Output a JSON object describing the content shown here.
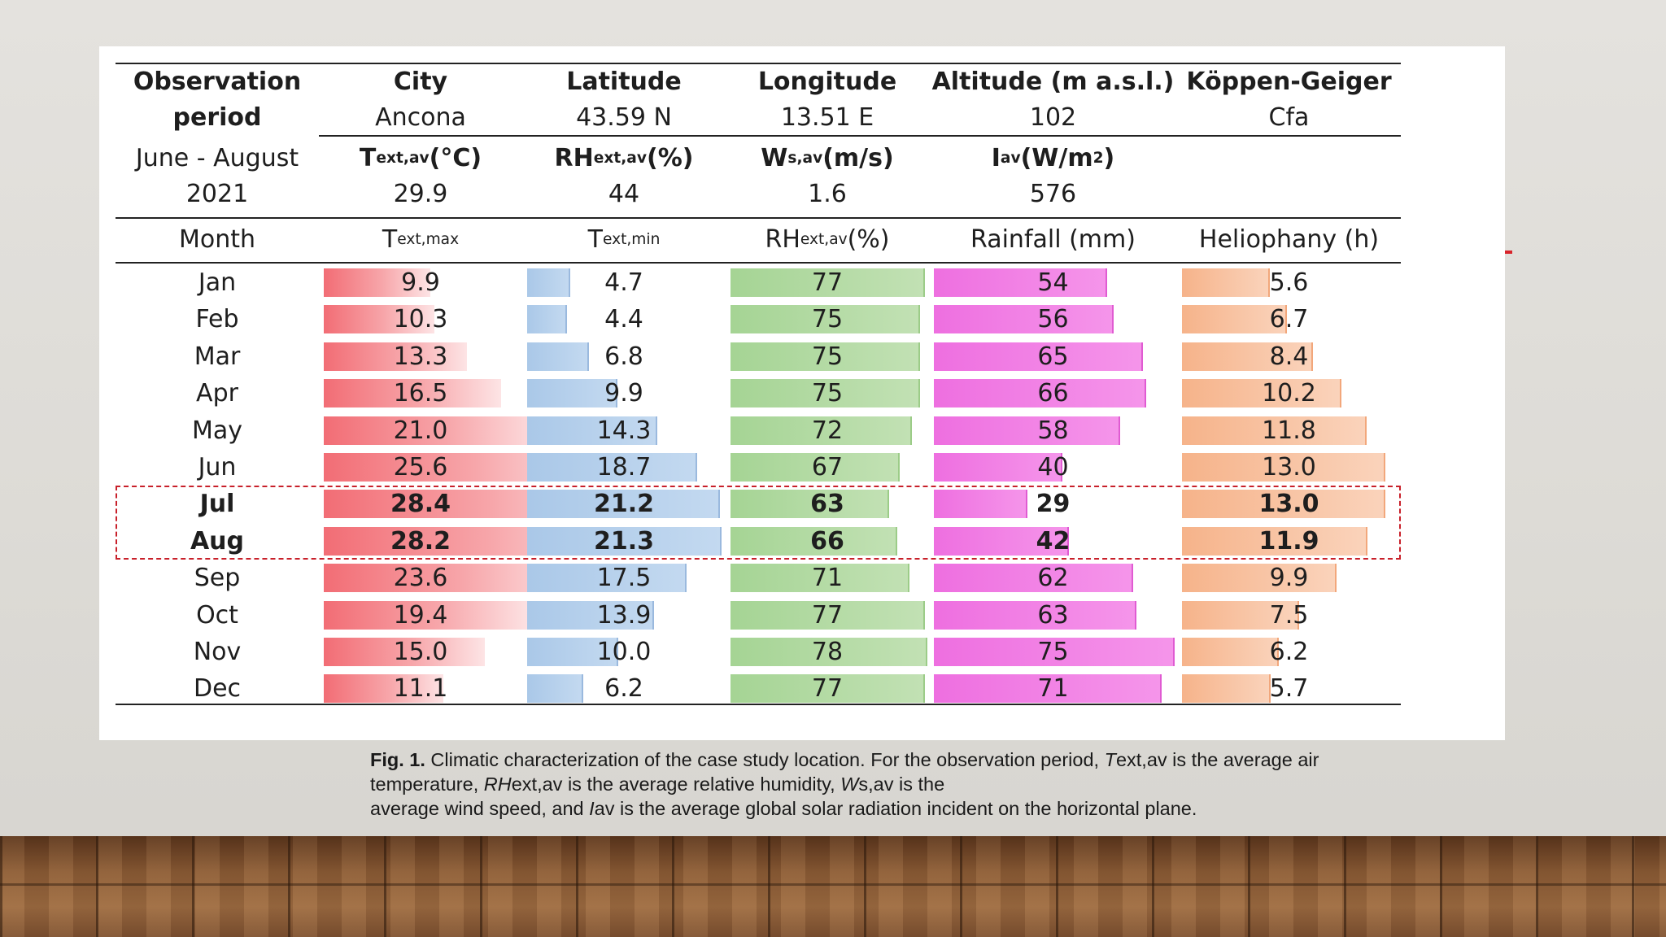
{
  "header": {
    "observation_period_line1": "Observation",
    "observation_period_line2": "period",
    "period_line1": "June - August",
    "period_line2": "2021",
    "city_label": "City",
    "city_value": "Ancona",
    "latitude_label": "Latitude",
    "latitude_value": "43.59 N",
    "longitude_label": "Longitude",
    "longitude_value": "13.51 E",
    "altitude_label": "Altitude (m a.s.l.)",
    "altitude_value": "102",
    "koppen_label": "Köppen-Geiger",
    "koppen_value": "Cfa",
    "text_av": {
      "symbol": "T",
      "sub": "ext,av",
      "unit": " (°C)",
      "value": "29.9"
    },
    "rh_av": {
      "symbol": "RH",
      "sub": "ext,av",
      "unit": " (%)",
      "value": "44"
    },
    "ws_av": {
      "symbol": "W",
      "sub": "s,av",
      "unit": " (m/s)",
      "value": "1.6"
    },
    "i_av": {
      "symbol": "I",
      "sub": "av",
      "unit_pre": " (W/m",
      "unit_sup": "2",
      "unit_post": ")",
      "value": "576"
    }
  },
  "monthly_header": {
    "month": "Month",
    "tmax": {
      "symbol": "T",
      "sub": "ext,max"
    },
    "tmin": {
      "symbol": "T",
      "sub": "ext,min"
    },
    "rh": {
      "symbol": "RH",
      "sub": "ext,av",
      "unit": " (%)"
    },
    "rainfall": "Rainfall (mm)",
    "heliophany": "Heliophany (h)"
  },
  "months": [
    {
      "month": "Jan",
      "tmax": "9.9",
      "tmin": "4.7",
      "rh": "77",
      "rain": "54",
      "helio": "5.6",
      "bold": false
    },
    {
      "month": "Feb",
      "tmax": "10.3",
      "tmin": "4.4",
      "rh": "75",
      "rain": "56",
      "helio": "6.7",
      "bold": false
    },
    {
      "month": "Mar",
      "tmax": "13.3",
      "tmin": "6.8",
      "rh": "75",
      "rain": "65",
      "helio": "8.4",
      "bold": false
    },
    {
      "month": "Apr",
      "tmax": "16.5",
      "tmin": "9.9",
      "rh": "75",
      "rain": "66",
      "helio": "10.2",
      "bold": false
    },
    {
      "month": "May",
      "tmax": "21.0",
      "tmin": "14.3",
      "rh": "72",
      "rain": "58",
      "helio": "11.8",
      "bold": false
    },
    {
      "month": "Jun",
      "tmax": "25.6",
      "tmin": "18.7",
      "rh": "67",
      "rain": "40",
      "helio": "13.0",
      "bold": false
    },
    {
      "month": "Jul",
      "tmax": "28.4",
      "tmin": "21.2",
      "rh": "63",
      "rain": "29",
      "helio": "13.0",
      "bold": true
    },
    {
      "month": "Aug",
      "tmax": "28.2",
      "tmin": "21.3",
      "rh": "66",
      "rain": "42",
      "helio": "11.9",
      "bold": true
    },
    {
      "month": "Sep",
      "tmax": "23.6",
      "tmin": "17.5",
      "rh": "71",
      "rain": "62",
      "helio": "9.9",
      "bold": false
    },
    {
      "month": "Oct",
      "tmax": "19.4",
      "tmin": "13.9",
      "rh": "77",
      "rain": "63",
      "helio": "7.5",
      "bold": false
    },
    {
      "month": "Nov",
      "tmax": "15.0",
      "tmin": "10.0",
      "rh": "78",
      "rain": "75",
      "helio": "6.2",
      "bold": false
    },
    {
      "month": "Dec",
      "tmax": "11.1",
      "tmin": "6.2",
      "rh": "77",
      "rain": "71",
      "helio": "5.7",
      "bold": false
    }
  ],
  "caption": {
    "fig_label": "Fig. 1.",
    "seg1": " Climatic characterization of the case study location. For the observation period, ",
    "t_italic": "T",
    "seg2": "ext,av is the average air",
    "seg3": "temperature, ",
    "rh_italic": "RH",
    "seg4": "ext,av is the average relative humidity, ",
    "w_italic": "W",
    "seg5": "s,av is the",
    "seg6": "average wind speed, and ",
    "i_italic": "I",
    "seg7": "av is the average global solar radiation incident on the horizontal plane."
  },
  "colors": {
    "tmax_bar": "#f26d75",
    "tmin_bar": "#aac8e8",
    "rh_bar": "#a5d494",
    "rain_bar": "#ee6fe0",
    "helio_bar": "#f6b38a",
    "highlight_border": "#c8202a"
  }
}
